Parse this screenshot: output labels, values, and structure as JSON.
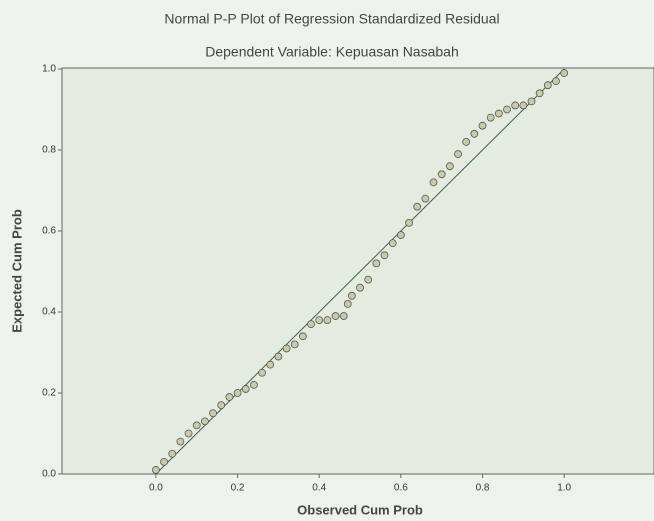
{
  "chart_data": {
    "type": "scatter",
    "title": "Normal P-P Plot of Regression Standardized Residual",
    "subtitle": "Dependent Variable: Kepuasan Nasabah",
    "x_label": "Observed Cum Prob",
    "y_label": "Expected Cum Prob",
    "x": [
      0.0,
      0.02,
      0.04,
      0.06,
      0.08,
      0.1,
      0.12,
      0.14,
      0.16,
      0.18,
      0.2,
      0.22,
      0.24,
      0.26,
      0.28,
      0.3,
      0.32,
      0.34,
      0.36,
      0.38,
      0.4,
      0.42,
      0.44,
      0.46,
      0.47,
      0.48,
      0.5,
      0.52,
      0.54,
      0.56,
      0.58,
      0.6,
      0.62,
      0.64,
      0.66,
      0.68,
      0.7,
      0.72,
      0.74,
      0.76,
      0.78,
      0.8,
      0.82,
      0.84,
      0.86,
      0.88,
      0.9,
      0.92,
      0.94,
      0.96,
      0.98,
      1.0
    ],
    "values": [
      0.01,
      0.03,
      0.05,
      0.08,
      0.1,
      0.12,
      0.13,
      0.15,
      0.17,
      0.19,
      0.2,
      0.21,
      0.22,
      0.25,
      0.27,
      0.29,
      0.31,
      0.32,
      0.34,
      0.37,
      0.38,
      0.38,
      0.39,
      0.39,
      0.42,
      0.44,
      0.46,
      0.48,
      0.52,
      0.54,
      0.57,
      0.59,
      0.62,
      0.66,
      0.68,
      0.72,
      0.74,
      0.76,
      0.79,
      0.82,
      0.84,
      0.86,
      0.88,
      0.89,
      0.9,
      0.91,
      0.91,
      0.92,
      0.94,
      0.96,
      0.97,
      0.99
    ],
    "color": "#c9cba8",
    "reference_line": {
      "x": [
        0,
        1
      ],
      "y": [
        0,
        1
      ]
    },
    "xlim": [
      -0.23,
      1.22
    ],
    "ylim": [
      0,
      1
    ],
    "xticks": [
      {
        "value": 0,
        "label": "0.0"
      },
      {
        "value": 0.2,
        "label": "0.2"
      },
      {
        "value": 0.4,
        "label": "0.4"
      },
      {
        "value": 0.6,
        "label": "0.6"
      },
      {
        "value": 0.8,
        "label": "0.8"
      },
      {
        "value": 1,
        "label": "1.0"
      }
    ],
    "yticks": [
      {
        "value": 0,
        "label": "0.0"
      },
      {
        "value": 0.2,
        "label": "0.2"
      },
      {
        "value": 0.4,
        "label": "0.4"
      },
      {
        "value": 0.6,
        "label": "0.6"
      },
      {
        "value": 0.8,
        "label": "0.8"
      },
      {
        "value": 1,
        "label": "1.0"
      }
    ]
  }
}
